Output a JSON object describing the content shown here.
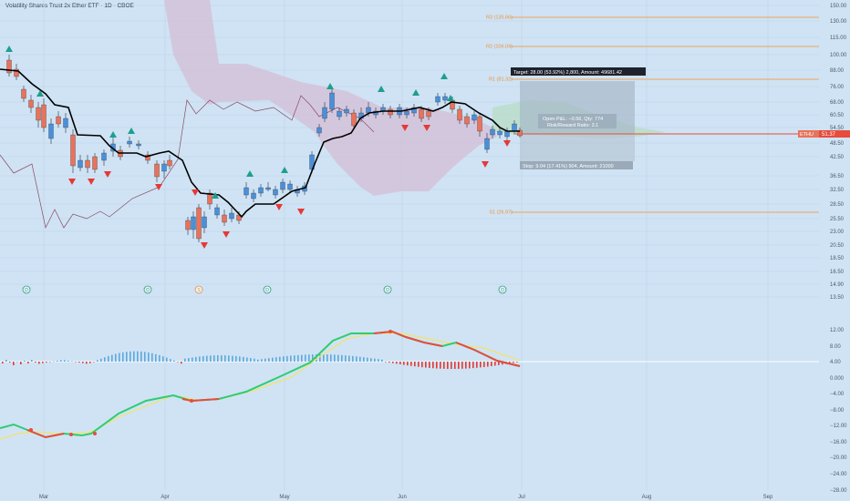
{
  "title": "Volatility Shares Trust 2x Ether ETF · 1D · CBOE",
  "ticker": "ETHU",
  "last_price": "51.37",
  "colors": {
    "background": "#cfe3f4",
    "grid": "#bcd3e8",
    "pivot_line": "#f0a35a",
    "pivot_text": "#e8933f",
    "target_box": "#a8b9c9",
    "stop_box": "#b7c6d4",
    "price_line": "#e74c3c",
    "up_candle": "#4a90d9",
    "down_candle": "#e8735a",
    "ma_line": "#000000",
    "cloud": "#d3bfd8",
    "cloud_green": "#b8dcc8",
    "lagging_line": "#8a4a63",
    "arrow_up": "#1f9e8f",
    "arrow_down": "#e53935",
    "hist_up": "#5fa8dc",
    "hist_down": "#e53935",
    "macd_green": "#2ecc71",
    "macd_red": "#e74c3c",
    "signal": "#f3e36a"
  },
  "price_axis_labels": [
    "150.00",
    "130.00",
    "115.00",
    "100.00",
    "88.00",
    "76.00",
    "68.00",
    "60.50",
    "54.50",
    "48.50",
    "42.50",
    "36.50",
    "32.50",
    "28.50",
    "25.50",
    "23.00",
    "20.50",
    "18.50",
    "16.50",
    "14.90",
    "13.50"
  ],
  "macd_axis_labels": [
    "12.00",
    "8.00",
    "4.00",
    "0.000",
    "−4.00",
    "−8.00",
    "−12.00",
    "−16.00",
    "−20.00",
    "−24.00",
    "−28.00"
  ],
  "time_labels": [
    "Mar",
    "Apr",
    "May",
    "Jun",
    "Jul",
    "Aug",
    "Sep"
  ],
  "pivots": [
    {
      "label": "R3 (135.66)"
    },
    {
      "label": "R2 (106.04)"
    },
    {
      "label": "R1 (81.32)"
    },
    {
      "label": "S1 (26.97)"
    }
  ],
  "position": {
    "target": "Target: 28.00 (53.92%) 2,800, Amount: 49681.42",
    "open_pl": "Open P&L: −0.56, Qty: 774",
    "ratio": "Risk/Reward Ratio: 3.1",
    "stop": "Stop: 9.04 (17.41%) 904, Amount: 21000"
  },
  "event_markers": [
    "D",
    "D",
    "S",
    "D",
    "D",
    "D"
  ]
}
